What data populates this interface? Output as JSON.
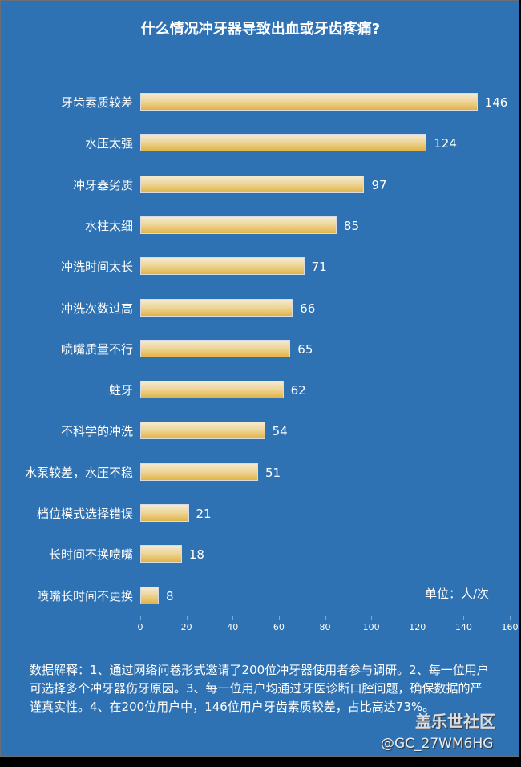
{
  "title": "什么情况冲牙器导致出血或牙齿疼痛?",
  "unit_label": "单位：人/次",
  "note": "数据解释：1、通过网络问卷形式邀请了200位冲牙器使用者参与调研。2、每一位用户可选择多个冲牙器伤牙原因。3、每一位用户均通过牙医诊断口腔问题，确保数据的严谨真实性。4、在200位用户中，146位用户牙齿素质较差，占比高达73%。",
  "watermark": {
    "site": "盖乐世社区",
    "user": "@GC_27WM6HG"
  },
  "colors": {
    "background": "#2e72b3",
    "bar_top": "#f4ead0",
    "bar_bottom": "#e2b446",
    "text": "#ffffff"
  },
  "chart_data": {
    "type": "bar",
    "orientation": "horizontal",
    "title": "什么情况冲牙器导致出血或牙齿疼痛?",
    "xlabel": "",
    "ylabel": "",
    "unit": "单位：人/次",
    "xlim": [
      0,
      160
    ],
    "xticks": [
      0,
      20,
      40,
      60,
      80,
      100,
      120,
      140,
      160
    ],
    "grid": false,
    "legend": null,
    "data_labels": true,
    "categories": [
      "牙齿素质较差",
      "水压太强",
      "冲牙器劣质",
      "水柱太细",
      "冲洗时间太长",
      "冲洗次数过高",
      "喷嘴质量不行",
      "蛀牙",
      "不科学的冲洗",
      "水泵较差，水压不稳",
      "档位模式选择错误",
      "长时间不换喷嘴",
      "喷嘴长时间不更换"
    ],
    "values": [
      146,
      124,
      97,
      85,
      71,
      66,
      65,
      62,
      54,
      51,
      21,
      18,
      8
    ]
  }
}
